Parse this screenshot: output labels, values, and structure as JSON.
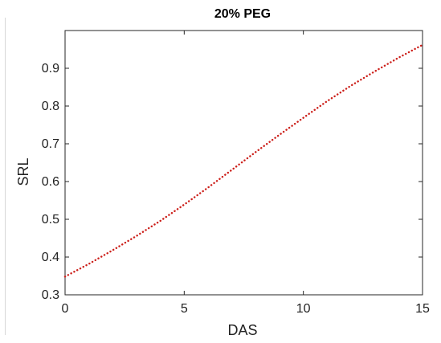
{
  "chart_data": {
    "type": "line",
    "title": "20% PEG",
    "xlabel": "DAS",
    "ylabel": "SRL",
    "xlim": [
      0,
      15
    ],
    "ylim": [
      0.3,
      1.0
    ],
    "xticks": [
      0,
      5,
      10,
      15
    ],
    "yticks": [
      0.3,
      0.4,
      0.5,
      0.6,
      0.7,
      0.8,
      0.9
    ],
    "grid": false,
    "line_style": "dotted",
    "color": "#cc1f1a",
    "series": [
      {
        "x": [
          0,
          1,
          2,
          3,
          4,
          5,
          6,
          7,
          8,
          9,
          10,
          11,
          12,
          13,
          14,
          15
        ],
        "values": [
          0.348,
          0.382,
          0.418,
          0.456,
          0.496,
          0.539,
          0.584,
          0.631,
          0.678,
          0.724,
          0.769,
          0.813,
          0.854,
          0.892,
          0.928,
          0.962
        ]
      }
    ]
  }
}
